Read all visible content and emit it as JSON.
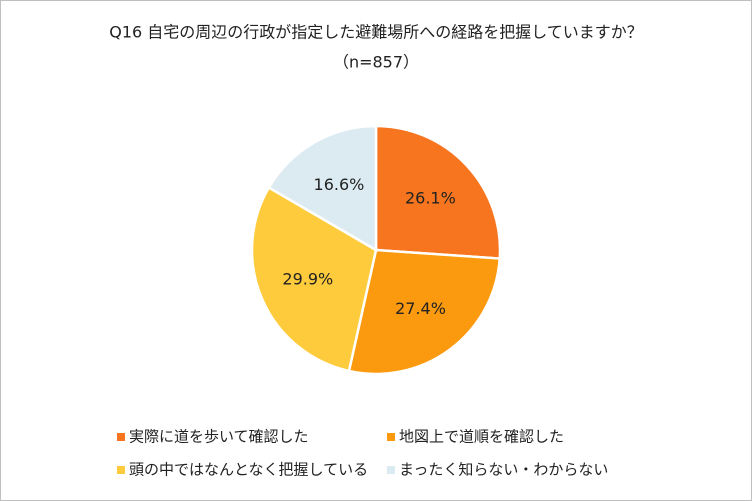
{
  "chart_data": {
    "type": "pie",
    "title": "Q16 自宅の周辺の行政が指定した避難場所への経路を把握していますか？",
    "subtitle": "（n=857）",
    "categories": [
      "実際に道を歩いて確認した",
      "地図上で道順を確認した",
      "頭の中ではなんとなく把握している",
      "まったく知らない・わからない"
    ],
    "values": [
      26.1,
      27.4,
      29.9,
      16.6
    ],
    "value_labels": [
      "26.1%",
      "27.4%",
      "29.9%",
      "16.6%"
    ],
    "colors": [
      "#f7751e",
      "#fb9a0f",
      "#fecb3c",
      "#dcebf2"
    ],
    "legend": "bottom"
  }
}
